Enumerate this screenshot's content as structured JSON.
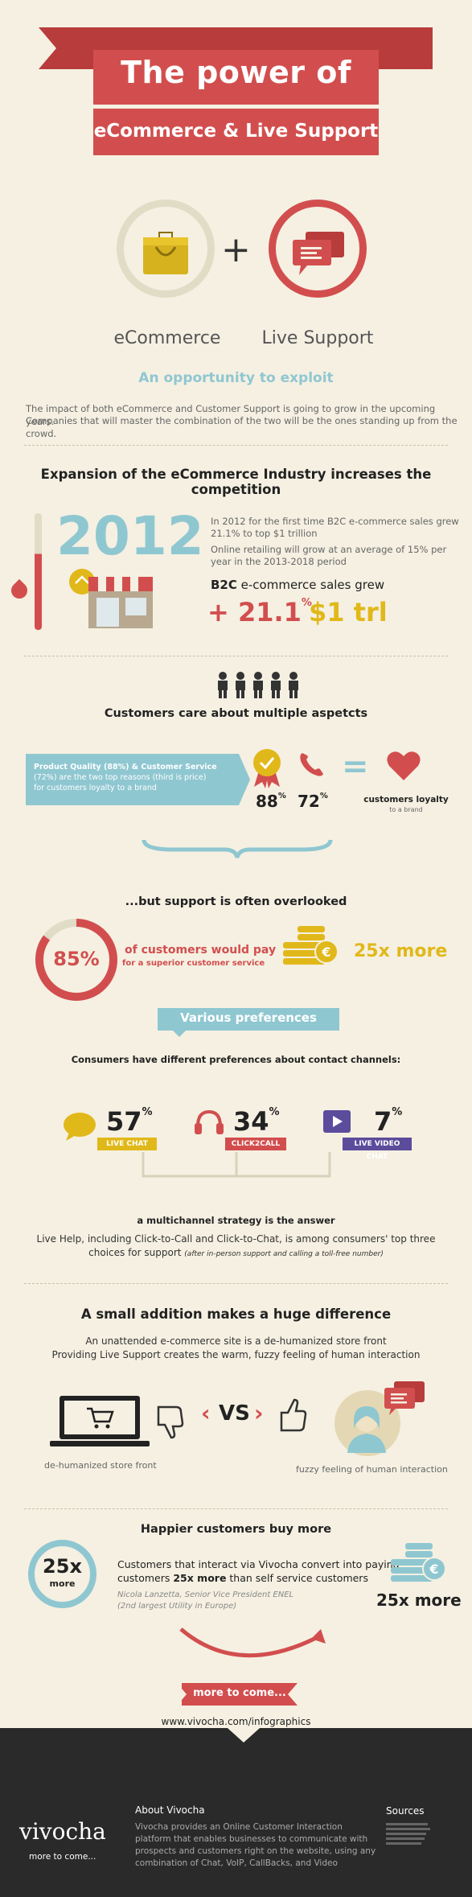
{
  "header": {
    "title": "The power of",
    "subtitle": "eCommerce & Live Support"
  },
  "hero": {
    "left_label": "eCommerce",
    "plus": "+",
    "right_label": "Live Support",
    "opportunity": "An opportunity to exploit",
    "intro_line1": "The impact of both eCommerce and Customer Support is going to grow in the upcoming years.",
    "intro_line2": "Companies that will master the combination of the two will be the ones standing up from the crowd."
  },
  "expansion": {
    "heading": "Expansion of the eCommerce Industry increases the competition",
    "year": "2012",
    "text1_l1": "In 2012 for the first time B2C e-commerce sales grew",
    "text1_l2": "21.1% to top $1 trillion",
    "text2_l1": "Online retailing will grow at an average of 15% per",
    "text2_l2": "year in the 2013-2018 period",
    "b2c_bold": "B2C",
    "b2c_rest": " e-commerce sales grew",
    "growth": "+ 21.1",
    "growth_pct": "%",
    "trillion": "$1 trl"
  },
  "aspects": {
    "heading": "Customers care about multiple aspetcts",
    "box_l1": "Product Quality (88%) & Customer Service",
    "box_l2": "(72%) are the two top reasons (third is price)",
    "box_l3": "for customers loyalty to a brand",
    "quality_value": "88",
    "service_value": "72",
    "pct": "%",
    "equals": "=",
    "loyalty_label": "customers loyalty",
    "loyalty_sub": "to a brand"
  },
  "overlooked": {
    "heading": "...but support is often overlooked",
    "pct_value": "85%",
    "text_l1": "of customers would pay",
    "text_l2": "for a superior customer service",
    "multiplier": "25x more"
  },
  "preferences": {
    "banner": "Various preferences",
    "heading": "Consumers have different preferences about contact channels:",
    "channels": [
      {
        "value": "57",
        "label": "LIVE CHAT",
        "color": "#e1b81a"
      },
      {
        "value": "34",
        "label": "CLICK2CALL",
        "color": "#d24e4e"
      },
      {
        "value": "7",
        "label": "LIVE VIDEO CHAT",
        "color": "#5b4c9c"
      }
    ],
    "pct": "%",
    "strategy": "a multichannel strategy is the answer",
    "strategy_l1": "Live Help, including Click-to-Call and Click-to-Chat, is among consumers' top three",
    "strategy_l2": "choices for support",
    "strategy_note": "(after in-person support and calling a toll-free number)"
  },
  "difference": {
    "heading": "A small addition makes a huge difference",
    "text_l1": "An unattended e-commerce site is a de-humanized store front",
    "text_l2": "Providing Live Support creates the warm, fuzzy feeling of human interaction",
    "vs": "VS",
    "left_caption": "de-humanized store front",
    "right_caption": "fuzzy feeling of human interaction"
  },
  "happier": {
    "heading": "Happier customers buy more",
    "badge_value": "25x",
    "badge_sub": "more",
    "text_l1": "Customers that interact via Vivocha convert into paying",
    "text_l2_a": "customers ",
    "text_l2_b": "25x more",
    "text_l2_c": " than self service customers",
    "quote_l1": "Nicola Lanzetta, Senior Vice President ENEL",
    "quote_l2": "(2nd largest Utility in Europe)",
    "multiplier": "25x more",
    "more_button": "more to come...",
    "url": "www.vivocha.com/infographics"
  },
  "footer": {
    "logo": "vivocha",
    "tagline": "more to come...",
    "about_title": "About Vivocha",
    "about_l1": "Vivocha provides an Online Customer Interaction",
    "about_l2": "platform that enables businesses to communicate with",
    "about_l3": "prospects and customers right on the website, using any",
    "about_l4": "combination of Chat, VoIP, CallBacks, and Video",
    "sources_title": "Sources"
  },
  "colors": {
    "red": "#d24e4e",
    "dark_red": "#b83c3c",
    "teal": "#8fc7d1",
    "yellow": "#e1b81a",
    "purple": "#5b4c9c",
    "cream": "#f5f0e2",
    "dark": "#2a2a2a"
  }
}
